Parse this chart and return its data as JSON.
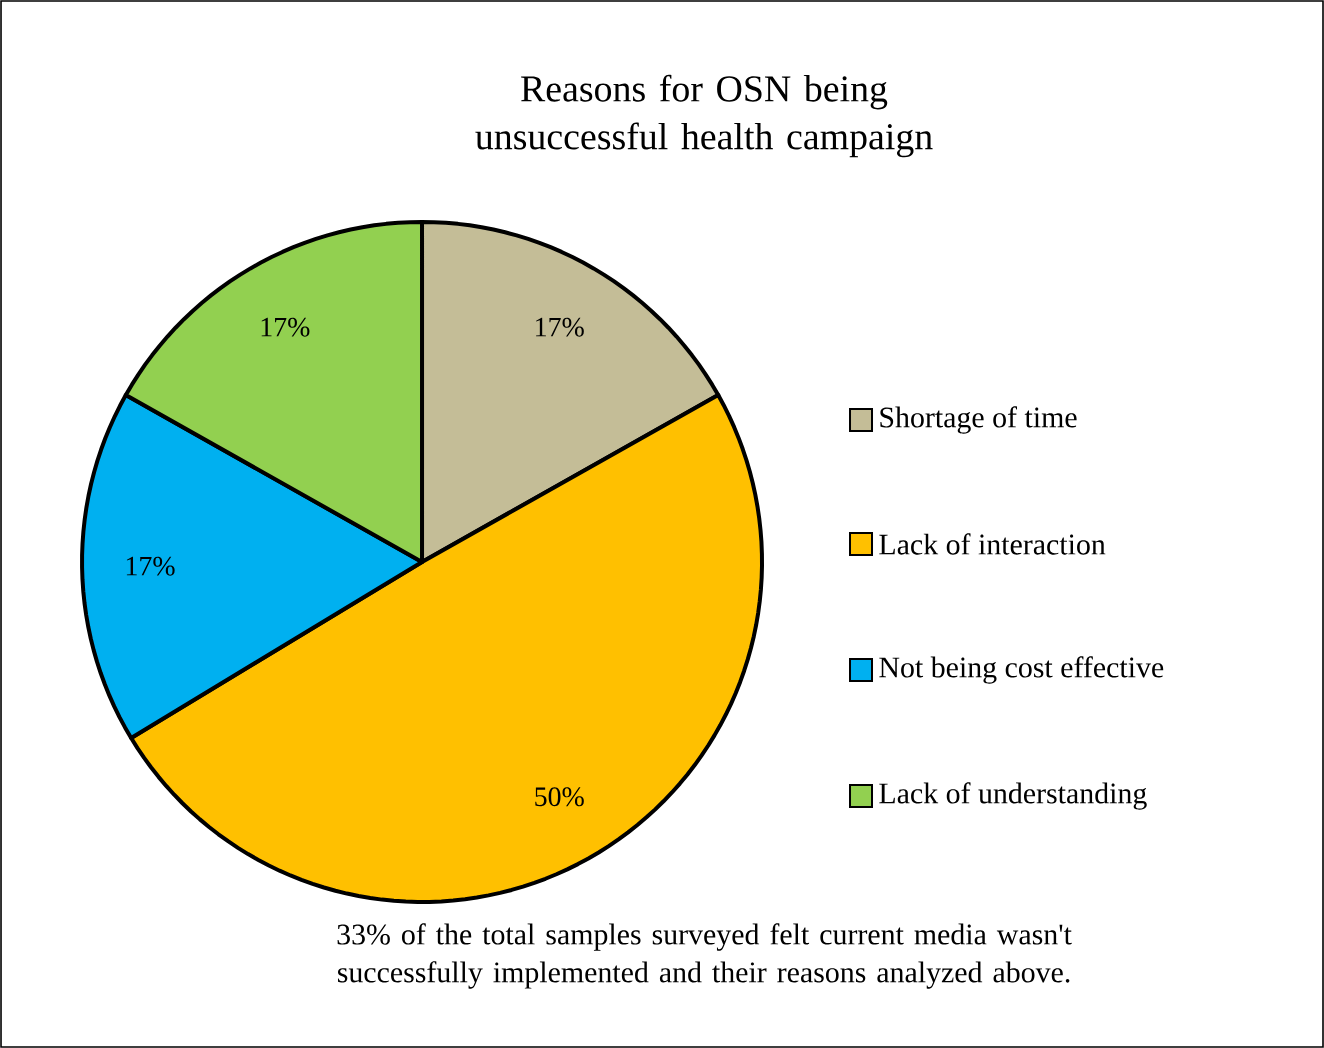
{
  "chart_data": {
    "type": "pie",
    "title": "Reasons for OSN being unsuccessful health campaign",
    "categories": [
      "Shortage of time",
      "Lack of interaction",
      "Not being cost effective",
      "Lack of understanding"
    ],
    "values": [
      17,
      50,
      17,
      17
    ],
    "value_labels": [
      "17%",
      "50%",
      "17%",
      "17%"
    ],
    "colors": [
      "#c4bd97",
      "#ffc000",
      "#00b0f0",
      "#92d050"
    ],
    "legend": "right",
    "annotations": [
      "33% of the total samples surveyed felt current media wasn't successfully implemented and their reasons analyzed above."
    ]
  }
}
